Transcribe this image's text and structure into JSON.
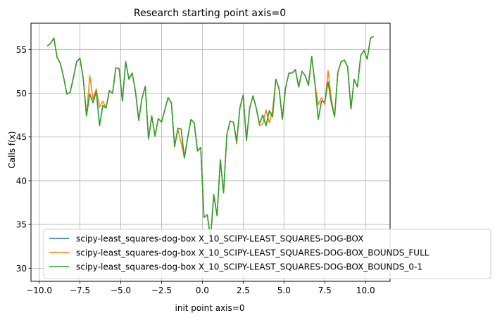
{
  "chart_data": {
    "type": "line",
    "title": "Research starting point axis=0",
    "xlabel": "init point axis=0",
    "ylabel": "Calls f(x)",
    "xlim": [
      -10.5,
      11.5
    ],
    "ylim": [
      28.5,
      58
    ],
    "xticks": [
      -10.0,
      -7.5,
      -5.0,
      -2.5,
      0.0,
      2.5,
      5.0,
      7.5,
      10.0
    ],
    "xtick_labels": [
      "−10.0",
      "−7.5",
      "−5.0",
      "−2.5",
      "0.0",
      "2.5",
      "5.0",
      "7.5",
      "10.0"
    ],
    "yticks": [
      30,
      35,
      40,
      45,
      50,
      55
    ],
    "ytick_labels": [
      "30",
      "35",
      "40",
      "45",
      "50",
      "55"
    ],
    "grid": true,
    "legend_position": "lower-left",
    "x": [
      -9.5,
      -9.3,
      -9.1,
      -8.9,
      -8.7,
      -8.5,
      -8.3,
      -8.1,
      -7.9,
      -7.7,
      -7.5,
      -7.3,
      -7.1,
      -6.9,
      -6.7,
      -6.5,
      -6.3,
      -6.1,
      -5.9,
      -5.7,
      -5.5,
      -5.3,
      -5.1,
      -4.9,
      -4.7,
      -4.5,
      -4.3,
      -4.1,
      -3.9,
      -3.7,
      -3.5,
      -3.3,
      -3.1,
      -2.9,
      -2.7,
      -2.5,
      -2.3,
      -2.1,
      -1.9,
      -1.7,
      -1.5,
      -1.3,
      -1.1,
      -0.9,
      -0.7,
      -0.5,
      -0.3,
      -0.1,
      0.1,
      0.3,
      0.5,
      0.7,
      0.9,
      1.1,
      1.3,
      1.5,
      1.7,
      1.9,
      2.1,
      2.3,
      2.5,
      2.7,
      2.9,
      3.1,
      3.3,
      3.5,
      3.7,
      3.9,
      4.1,
      4.3,
      4.5,
      4.7,
      4.9,
      5.1,
      5.3,
      5.5,
      5.7,
      5.9,
      6.1,
      6.3,
      6.5,
      6.7,
      6.9,
      7.1,
      7.3,
      7.5,
      7.7,
      7.9,
      8.1,
      8.3,
      8.5,
      8.7,
      8.9,
      9.1,
      9.3,
      9.5,
      9.7,
      9.9,
      10.1,
      10.3,
      10.5
    ],
    "series": [
      {
        "name": "scipy-least_squares-dog-box X_10_SCIPY-LEAST_SQUARES-DOG-BOX",
        "color": "#1f77b4",
        "values": [
          55.4,
          55.7,
          56.3,
          54.1,
          53.4,
          51.8,
          49.9,
          50.1,
          51.8,
          53.6,
          54.0,
          51.7,
          47.4,
          49.9,
          48.9,
          50.2,
          46.3,
          48.6,
          48.3,
          50.3,
          50.0,
          52.9,
          52.8,
          49.1,
          53.6,
          51.6,
          52.3,
          50.2,
          46.9,
          49.4,
          50.8,
          44.8,
          47.4,
          45.1,
          47.1,
          46.7,
          48.1,
          49.5,
          48.9,
          43.9,
          46.0,
          45.9,
          42.6,
          44.9,
          47.0,
          46.6,
          43.4,
          43.8,
          35.8,
          36.1,
          33.4,
          38.4,
          36.0,
          42.4,
          38.6,
          45.3,
          46.8,
          46.7,
          44.5,
          48.3,
          49.8,
          44.6,
          48.3,
          49.7,
          48.3,
          46.5,
          47.5,
          46.3,
          48.0,
          47.3,
          51.6,
          50.5,
          47.0,
          50.6,
          52.3,
          52.3,
          52.7,
          50.7,
          52.5,
          52.0,
          50.9,
          54.2,
          51.0,
          47.0,
          49.1,
          49.0,
          51.3,
          48.9,
          47.3,
          52.4,
          53.6,
          53.8,
          53.0,
          48.2,
          51.6,
          50.7,
          54.3,
          54.9,
          53.9,
          56.3,
          56.5
        ]
      },
      {
        "name": "scipy-least_squares-dog-box X_10_SCIPY-LEAST_SQUARES-DOG-BOX_BOUNDS_FULL",
        "color": "#ff7f0e",
        "values": [
          55.4,
          55.7,
          56.3,
          54.1,
          53.4,
          51.8,
          49.9,
          50.1,
          51.8,
          53.6,
          54.0,
          51.7,
          47.4,
          52.0,
          49.3,
          50.5,
          48.4,
          49.1,
          48.3,
          50.3,
          50.0,
          52.9,
          52.8,
          49.1,
          53.6,
          51.6,
          52.3,
          50.2,
          46.9,
          49.4,
          50.8,
          44.8,
          47.4,
          45.1,
          47.1,
          46.7,
          48.1,
          49.5,
          48.9,
          43.9,
          45.9,
          44.3,
          42.6,
          44.9,
          47.0,
          46.6,
          43.4,
          43.8,
          35.8,
          36.1,
          33.4,
          38.4,
          36.0,
          42.4,
          38.6,
          45.3,
          46.8,
          46.7,
          44.2,
          48.4,
          49.8,
          44.6,
          48.3,
          49.7,
          48.3,
          46.3,
          46.5,
          48.1,
          46.6,
          48.0,
          51.6,
          50.5,
          47.0,
          50.6,
          52.3,
          52.3,
          52.7,
          50.7,
          52.5,
          52.0,
          50.9,
          54.2,
          51.0,
          48.7,
          49.5,
          48.7,
          52.6,
          49.4,
          47.3,
          52.4,
          53.6,
          53.8,
          53.0,
          48.2,
          51.6,
          50.7,
          54.3,
          54.9,
          53.9,
          56.3,
          56.5
        ]
      },
      {
        "name": "scipy-least_squares-dog-box X_10_SCIPY-LEAST_SQUARES-DOG-BOX_BOUNDS_0-1",
        "color": "#2ca02c",
        "values": [
          55.4,
          55.7,
          56.3,
          54.1,
          53.4,
          51.8,
          49.9,
          50.1,
          51.8,
          53.6,
          54.0,
          51.7,
          47.4,
          49.9,
          48.9,
          50.2,
          46.3,
          48.6,
          48.3,
          50.3,
          50.0,
          52.9,
          52.8,
          49.1,
          53.6,
          51.6,
          52.3,
          50.2,
          46.9,
          49.4,
          50.8,
          44.8,
          47.4,
          45.1,
          47.1,
          46.7,
          48.1,
          49.5,
          48.9,
          43.9,
          46.0,
          45.9,
          42.6,
          44.9,
          47.0,
          46.6,
          43.4,
          43.8,
          35.8,
          36.1,
          33.4,
          38.4,
          36.0,
          42.4,
          38.6,
          45.3,
          46.8,
          46.7,
          44.5,
          48.3,
          49.8,
          44.6,
          48.3,
          49.7,
          48.3,
          46.5,
          47.5,
          46.3,
          48.0,
          47.3,
          51.6,
          50.5,
          47.0,
          50.6,
          52.3,
          52.3,
          52.7,
          50.7,
          52.5,
          52.0,
          50.9,
          54.2,
          51.0,
          47.0,
          49.1,
          49.0,
          51.3,
          48.9,
          47.3,
          52.4,
          53.6,
          53.8,
          53.0,
          48.2,
          51.6,
          50.7,
          54.3,
          54.9,
          53.9,
          56.3,
          56.5
        ]
      }
    ]
  }
}
